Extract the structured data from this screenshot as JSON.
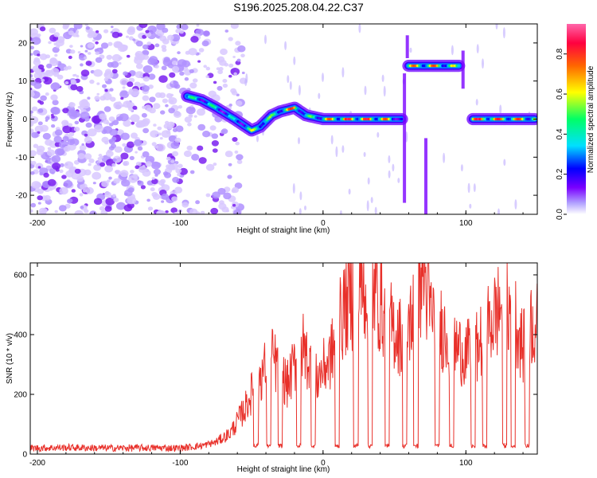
{
  "title": "S196.2025.208.04.22.C37",
  "colors": {
    "snr_line": "#e8302a",
    "spectrum_noise": "#8a2be2",
    "colormap": [
      "#ffffff",
      "#b0a0ff",
      "#7a00ff",
      "#0000ff",
      "#00e0ff",
      "#00ff66",
      "#ffff00",
      "#ff6600",
      "#ff0040",
      "#ff66aa"
    ]
  },
  "chart_data": [
    {
      "type": "heatmap",
      "title": "",
      "xlabel": "Height of straight line (km)",
      "ylabel": "Frequency (Hz)",
      "xlim": [
        -205,
        150
      ],
      "ylim": [
        -25,
        25
      ],
      "x_ticks": [
        -200,
        -100,
        0,
        100
      ],
      "y_ticks": [
        -20,
        -10,
        0,
        10,
        20
      ],
      "colorbar": {
        "label": "Normalized spectral amplitude",
        "range": [
          0,
          0.95
        ],
        "ticks": [
          0.0,
          0.2,
          0.4,
          0.6,
          0.8
        ]
      },
      "noise_region_km": [
        -205,
        -55
      ],
      "ridge": [
        {
          "x": -95,
          "freq": 6,
          "amp": 0.5
        },
        {
          "x": -85,
          "freq": 5,
          "amp": 0.55
        },
        {
          "x": -75,
          "freq": 3,
          "amp": 0.5
        },
        {
          "x": -62,
          "freq": 0,
          "amp": 0.45
        },
        {
          "x": -50,
          "freq": -3,
          "amp": 0.6
        },
        {
          "x": -44,
          "freq": -2,
          "amp": 0.75
        },
        {
          "x": -36,
          "freq": 1,
          "amp": 0.55
        },
        {
          "x": -30,
          "freq": 2,
          "amp": 0.7
        },
        {
          "x": -20,
          "freq": 3,
          "amp": 0.8
        },
        {
          "x": -12,
          "freq": 1,
          "amp": 0.5
        },
        {
          "x": 0,
          "freq": 0,
          "amp": 0.7
        },
        {
          "x": 15,
          "freq": 0,
          "amp": 0.85
        },
        {
          "x": 30,
          "freq": 0,
          "amp": 0.85
        },
        {
          "x": 45,
          "freq": 0,
          "amp": 0.75
        },
        {
          "x": 55,
          "freq": 0,
          "amp": 0.4
        },
        {
          "x": 60,
          "freq": 14,
          "amp": 0.7
        },
        {
          "x": 70,
          "freq": 14,
          "amp": 0.8
        },
        {
          "x": 80,
          "freq": 14,
          "amp": 0.75
        },
        {
          "x": 90,
          "freq": 14,
          "amp": 0.7
        },
        {
          "x": 95,
          "freq": 14,
          "amp": 0.5
        },
        {
          "x": 105,
          "freq": 0,
          "amp": 0.85
        },
        {
          "x": 115,
          "freq": 0,
          "amp": 0.85
        },
        {
          "x": 125,
          "freq": 0,
          "amp": 0.8
        },
        {
          "x": 135,
          "freq": 0,
          "amp": 0.8
        },
        {
          "x": 148,
          "freq": 0,
          "amp": 0.7
        }
      ]
    },
    {
      "type": "line",
      "title": "",
      "xlabel": "Height of straight line (km)",
      "ylabel": "SNR (10 * v/v)",
      "xlim": [
        -205,
        150
      ],
      "ylim": [
        0,
        640
      ],
      "x_ticks": [
        -200,
        -100,
        0,
        100
      ],
      "y_ticks": [
        0,
        200,
        400,
        600
      ],
      "series": [
        {
          "x": [
            -205,
            -180,
            -150,
            -120,
            -100,
            -85,
            -75,
            -65,
            -55,
            -45,
            -35,
            -25,
            -15,
            -5,
            5,
            15,
            25,
            35,
            45,
            55,
            65,
            70,
            75,
            85,
            95,
            105,
            115,
            125,
            135,
            140,
            145,
            150
          ],
          "y": [
            20,
            22,
            20,
            21,
            20,
            28,
            40,
            70,
            150,
            260,
            320,
            230,
            370,
            250,
            320,
            490,
            560,
            560,
            450,
            390,
            490,
            620,
            470,
            410,
            350,
            330,
            420,
            500,
            450,
            350,
            440,
            430
          ]
        }
      ]
    }
  ]
}
